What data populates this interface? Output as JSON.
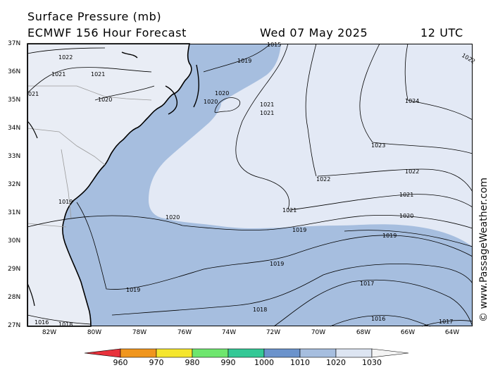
{
  "header": {
    "title": "Surface Pressure (mb)",
    "model": "ECMWF 156 Hour Forecast",
    "date": "Wed 07 May 2025",
    "time": "12 UTC"
  },
  "watermark": "© www.PassageWeather.com",
  "axes": {
    "latitude_labels": [
      "37N",
      "36N",
      "35N",
      "34N",
      "33N",
      "32N",
      "31N",
      "30N",
      "29N",
      "28N",
      "27N"
    ],
    "longitude_labels": [
      "82W",
      "80W",
      "78W",
      "76W",
      "74W",
      "72W",
      "70W",
      "68W",
      "66W",
      "64W"
    ]
  },
  "colors": {
    "land": "#e9edf5",
    "ocean_1020": "#a6bedf",
    "high_1025": "#e3e9f5",
    "colorbar": [
      "#e8323c",
      "#f0961e",
      "#f5e62d",
      "#6ee66e",
      "#34c896",
      "#6b93cc",
      "#a6bedf",
      "#dde5f2",
      "#f4f4f4"
    ]
  },
  "contour_labels": [
    "1015",
    "1022",
    "1021",
    "1021",
    "021",
    "1019",
    "1020",
    "1020",
    "1020",
    "1021",
    "1021",
    "1024",
    "1023",
    "1022",
    "1022",
    "1021",
    "1021",
    "1020",
    "1020",
    "1019",
    "1019",
    "1019",
    "1019",
    "1017",
    "1018",
    "1016",
    "1017",
    "1016",
    "1018",
    "1022"
  ],
  "legend": {
    "ticks": [
      "960",
      "970",
      "980",
      "990",
      "1000",
      "1010",
      "1020",
      "1030"
    ]
  }
}
